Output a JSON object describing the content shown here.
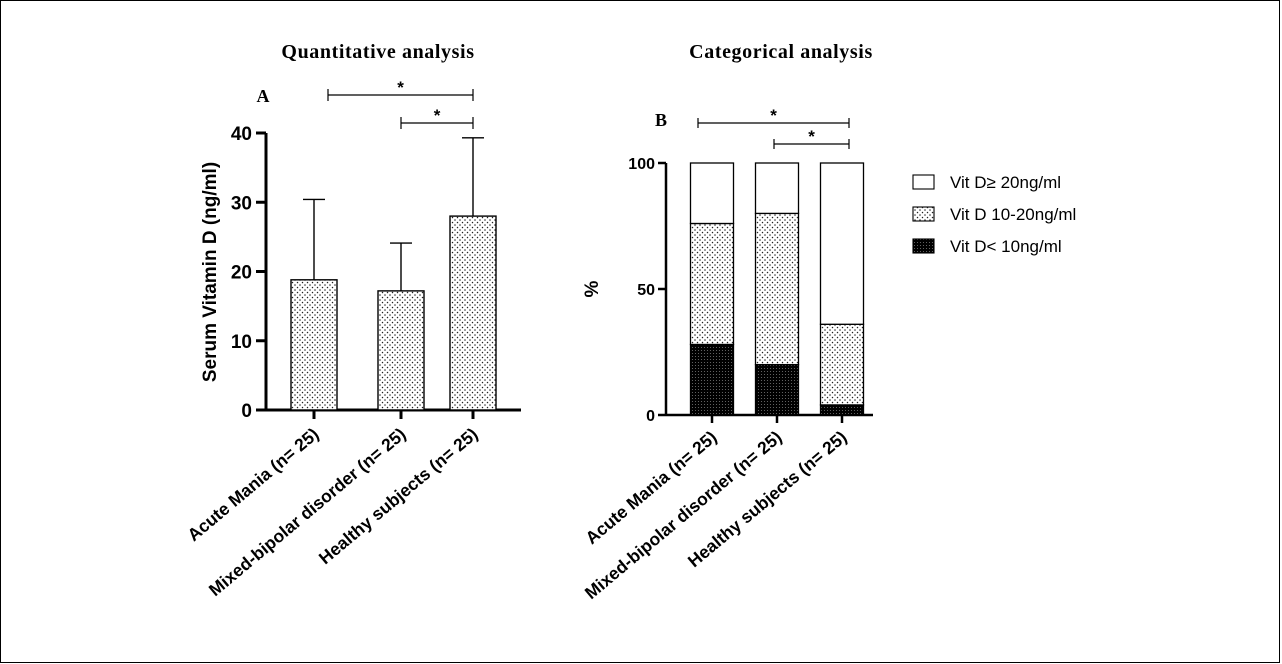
{
  "chart_data": [
    {
      "type": "bar",
      "title": "Quantitative analysis",
      "panel_label": "A",
      "ylabel": "Serum Vitamin D (ng/ml)",
      "ylim": [
        0,
        40
      ],
      "yticks": [
        "0",
        "10",
        "20",
        "30",
        "40"
      ],
      "categories": [
        "Acute Mania (n= 25)",
        "Mixed-bipolar disorder (n= 25)",
        "Healthy subjects (n= 25)"
      ],
      "values": [
        18.8,
        17.2,
        28.0
      ],
      "error_upper": [
        30.4,
        24.1,
        39.3
      ],
      "significance": [
        {
          "from": 0,
          "to": 2,
          "label": "*"
        },
        {
          "from": 1,
          "to": 2,
          "label": "*"
        }
      ],
      "fill_pattern": "dotted"
    },
    {
      "type": "bar",
      "stacked": true,
      "title": "Categorical analysis",
      "panel_label": "B",
      "ylabel": "%",
      "ylim": [
        0,
        100
      ],
      "yticks": [
        "0",
        "50",
        "100"
      ],
      "categories": [
        "Acute Mania (n= 25)",
        "Mixed-bipolar disorder (n= 25)",
        "Healthy subjects (n= 25)"
      ],
      "series": [
        {
          "name": "Vit D< 10ng/ml",
          "values": [
            28,
            20,
            4
          ],
          "pattern": "dense"
        },
        {
          "name": "Vit D 10-20ng/ml",
          "values": [
            48,
            60,
            32
          ],
          "pattern": "dotted"
        },
        {
          "name": "Vit D≥ 20ng/ml",
          "values": [
            24,
            20,
            64
          ],
          "pattern": "none"
        }
      ],
      "legend_order": [
        "Vit D≥ 20ng/ml",
        "Vit D 10-20ng/ml",
        "Vit D< 10ng/ml"
      ],
      "legend_position": "right",
      "significance": [
        {
          "from": 0,
          "to": 2,
          "label": "*"
        },
        {
          "from": 1,
          "to": 2,
          "label": "*"
        }
      ]
    }
  ]
}
